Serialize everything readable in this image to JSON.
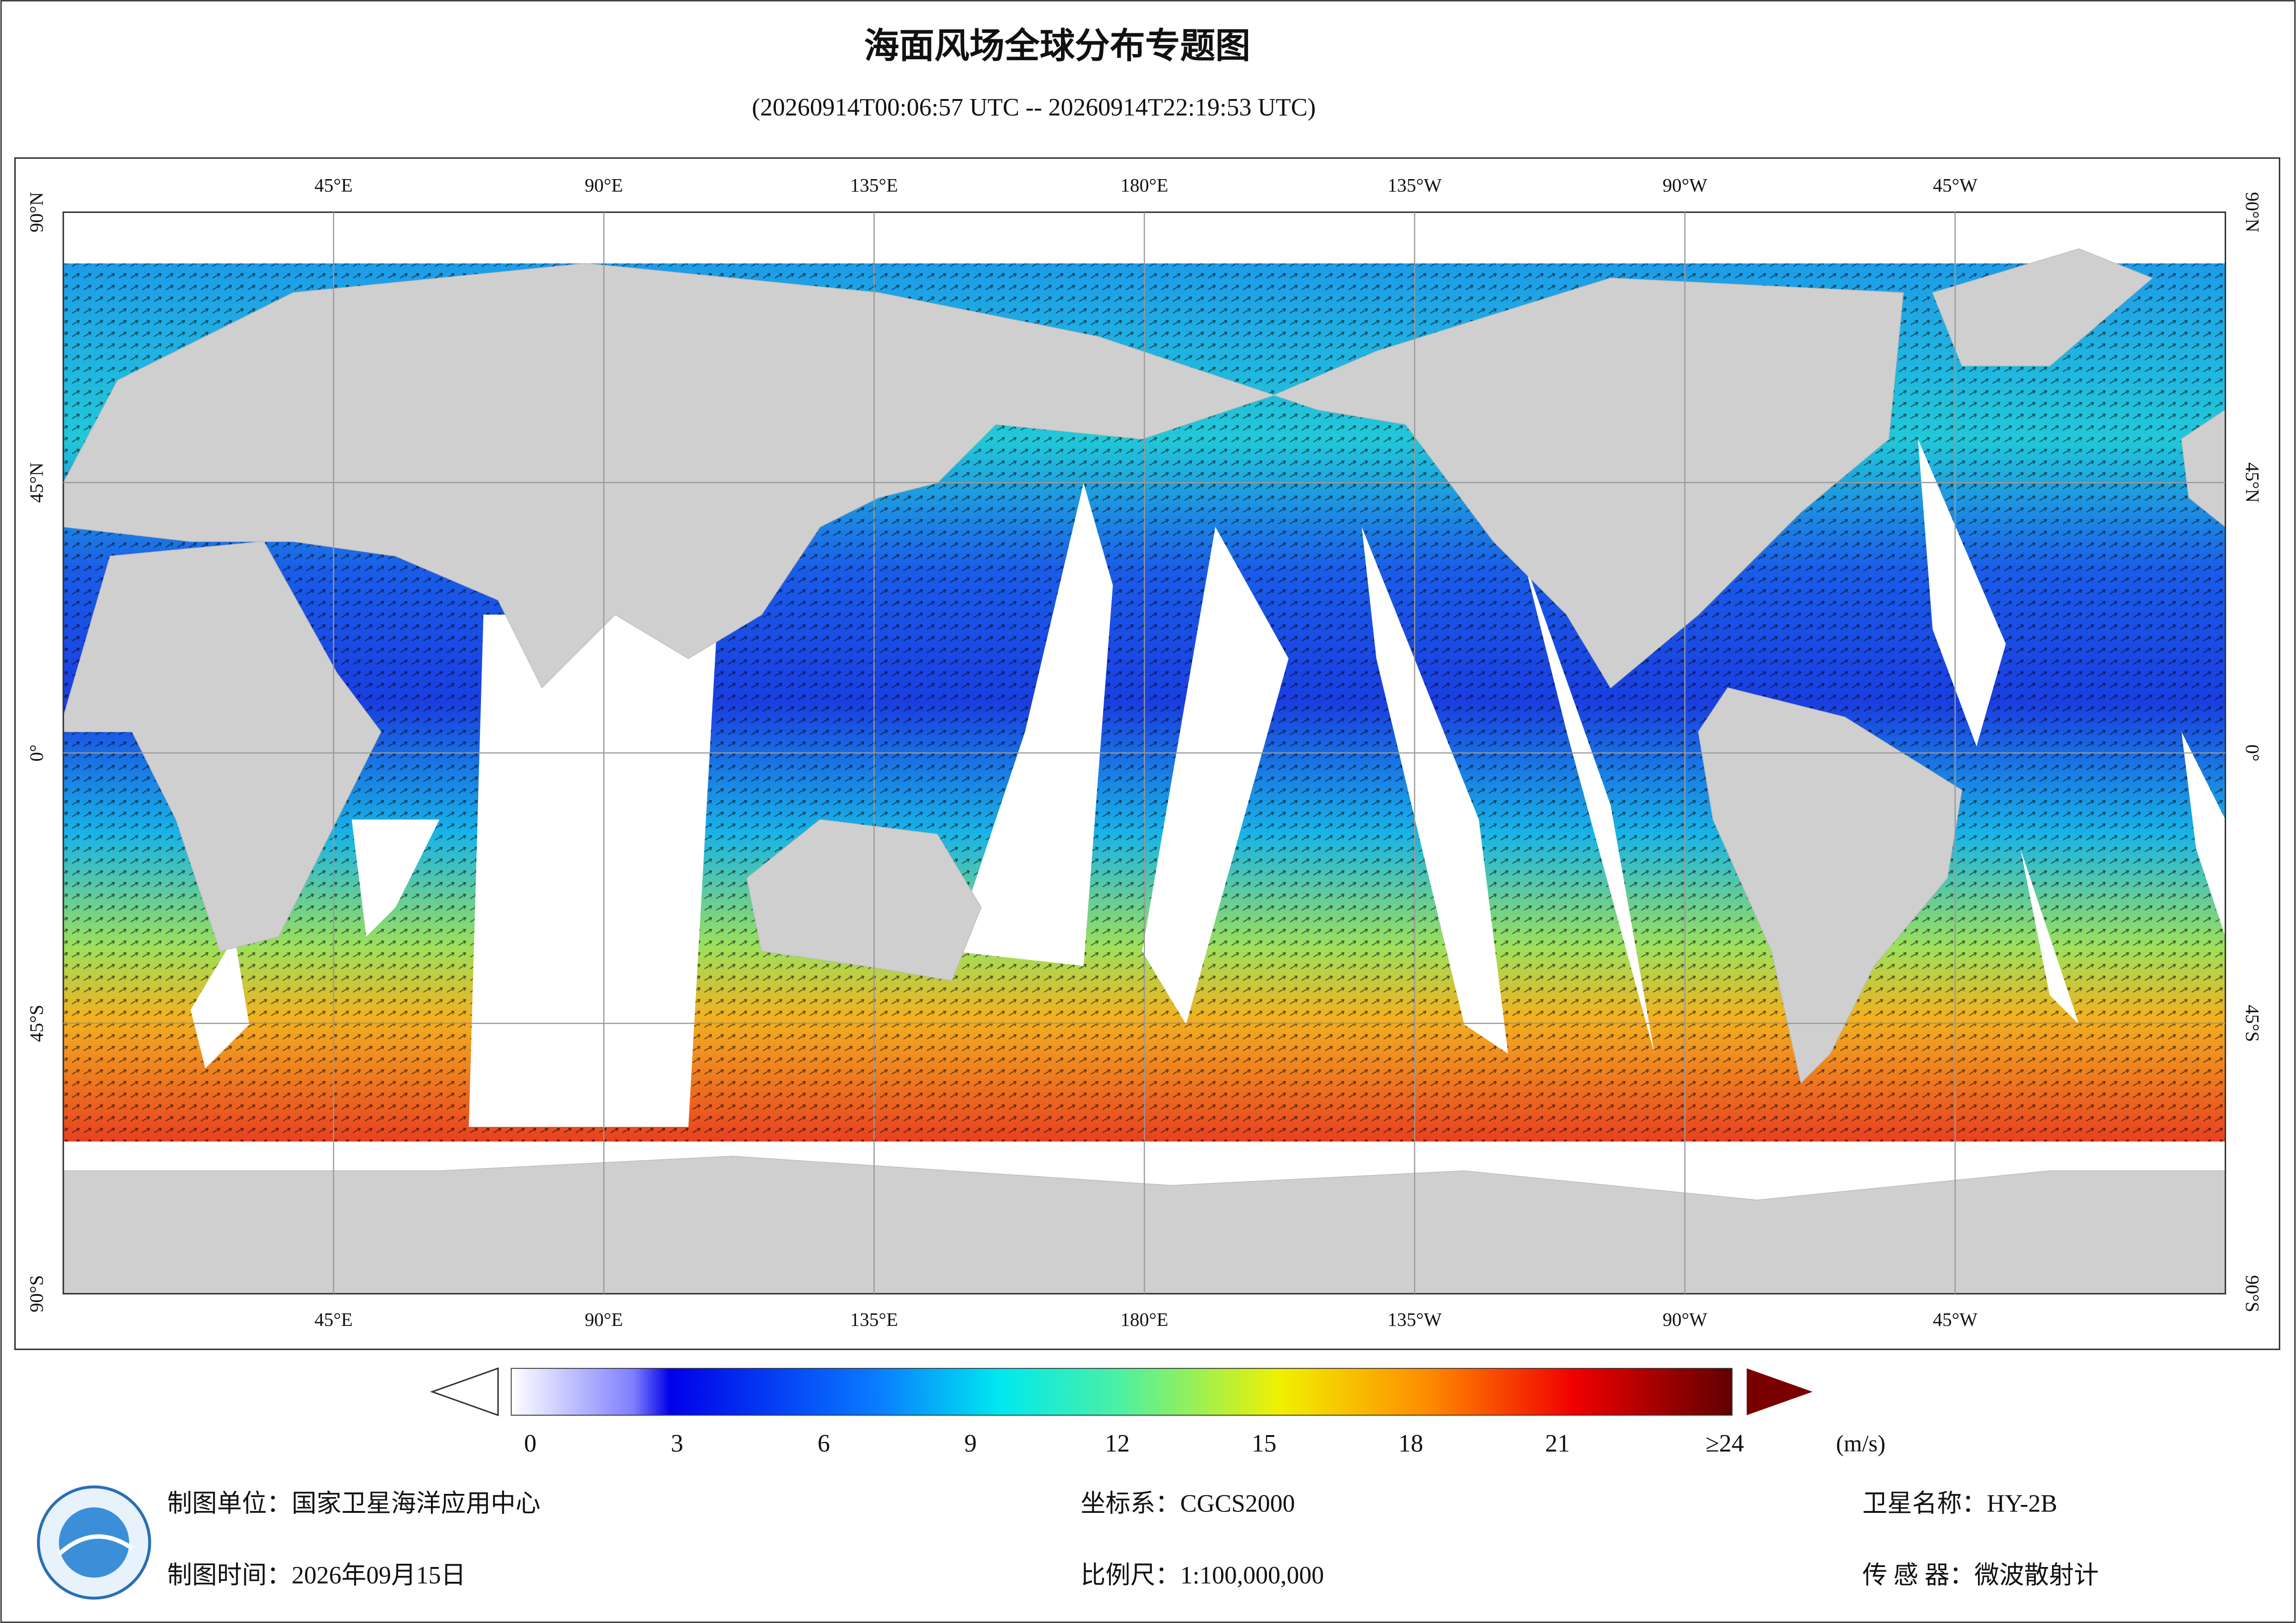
{
  "header": {
    "title": "海面风场全球分布专题图",
    "subtitle": "(20260914T00:06:57 UTC -- 20260914T22:19:53 UTC)"
  },
  "map": {
    "lon_labels": [
      "45°E",
      "90°E",
      "135°E",
      "180°E",
      "135°W",
      "90°W",
      "45°W"
    ],
    "lat_labels": [
      "90°N",
      "45°N",
      "0°",
      "45°S",
      "90°S"
    ]
  },
  "colorbar": {
    "range": [
      0,
      24
    ],
    "ticks": [
      0,
      3,
      6,
      9,
      12,
      15,
      18,
      21,
      {
        "value": 24,
        "label": "≥24"
      }
    ],
    "unit": "(m/s)"
  },
  "footer": {
    "unit": "制图单位：国家卫星海洋应用中心",
    "time": "制图时间：2026年09月15日",
    "crs": "坐标系：CGCS2000",
    "scale": "比例尺：1:100,000,000",
    "satellite": "卫星名称：HY-2B",
    "sensor": "传 感 器：微波散射计"
  }
}
